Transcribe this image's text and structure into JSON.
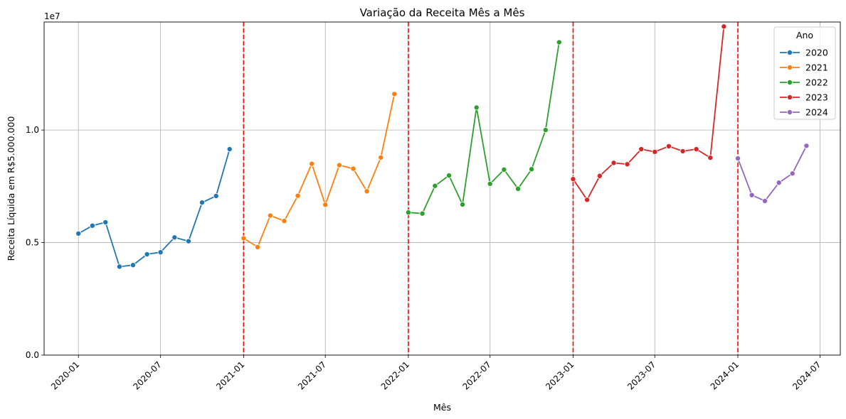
{
  "chart_data": {
    "type": "line",
    "title": "Variação da Receita Mês a Mês",
    "xlabel": "Mês",
    "ylabel": "Receita Líquida em R$5.000.000",
    "y_exponent_label": "1e7",
    "ylim": [
      0,
      14800000
    ],
    "xlim": [
      "2019-10-17",
      "2024-08-15"
    ],
    "x_ticks": [
      "2020-01",
      "2020-07",
      "2021-01",
      "2021-07",
      "2022-01",
      "2022-07",
      "2023-01",
      "2023-07",
      "2024-01",
      "2024-07"
    ],
    "y_ticks": [
      {
        "value": 0,
        "label": "0.0"
      },
      {
        "value": 5000000,
        "label": "0.5"
      },
      {
        "value": 10000000,
        "label": "1.0"
      }
    ],
    "grid": true,
    "legend": {
      "title": "Ano",
      "placement": "top-right"
    },
    "vertical_lines": {
      "color": "#ff0000",
      "style": "dashed",
      "x": [
        "2021-01-01",
        "2022-01-01",
        "2023-01-01",
        "2024-01-01"
      ]
    },
    "series": [
      {
        "name": "2020",
        "color": "#1f77b4",
        "x": [
          "2020-01-01",
          "2020-02-01",
          "2020-03-01",
          "2020-04-01",
          "2020-05-01",
          "2020-06-01",
          "2020-07-01",
          "2020-08-01",
          "2020-09-01",
          "2020-10-01",
          "2020-11-01",
          "2020-12-01"
        ],
        "values": [
          5400000,
          5750000,
          5900000,
          3930000,
          4000000,
          4480000,
          4570000,
          5230000,
          5060000,
          6780000,
          7070000,
          9150000
        ]
      },
      {
        "name": "2021",
        "color": "#ff7f0e",
        "x": [
          "2021-01-01",
          "2021-02-01",
          "2021-03-01",
          "2021-04-01",
          "2021-05-01",
          "2021-06-01",
          "2021-07-01",
          "2021-08-01",
          "2021-09-01",
          "2021-10-01",
          "2021-11-01",
          "2021-12-01"
        ],
        "values": [
          5190000,
          4800000,
          6200000,
          5960000,
          7080000,
          8500000,
          6680000,
          8440000,
          8280000,
          7280000,
          8780000,
          11600000
        ]
      },
      {
        "name": "2022",
        "color": "#2ca02c",
        "x": [
          "2022-01-01",
          "2022-02-01",
          "2022-03-01",
          "2022-04-01",
          "2022-05-01",
          "2022-06-01",
          "2022-07-01",
          "2022-08-01",
          "2022-09-01",
          "2022-10-01",
          "2022-11-01",
          "2022-12-01"
        ],
        "values": [
          6340000,
          6290000,
          7520000,
          7980000,
          6690000,
          11000000,
          7610000,
          8240000,
          7390000,
          8260000,
          10000000,
          13900000
        ]
      },
      {
        "name": "2023",
        "color": "#d62728",
        "x": [
          "2023-01-01",
          "2023-02-01",
          "2023-03-01",
          "2023-04-01",
          "2023-05-01",
          "2023-06-01",
          "2023-07-01",
          "2023-08-01",
          "2023-09-01",
          "2023-10-01",
          "2023-11-01",
          "2023-12-01"
        ],
        "values": [
          7820000,
          6900000,
          7960000,
          8540000,
          8480000,
          9150000,
          9030000,
          9280000,
          9060000,
          9150000,
          8770000,
          14600000
        ]
      },
      {
        "name": "2024",
        "color": "#9467bd",
        "x": [
          "2024-01-01",
          "2024-02-01",
          "2024-03-01",
          "2024-04-01",
          "2024-05-01",
          "2024-06-01"
        ],
        "values": [
          8740000,
          7110000,
          6850000,
          7660000,
          8070000,
          9300000
        ]
      }
    ]
  }
}
